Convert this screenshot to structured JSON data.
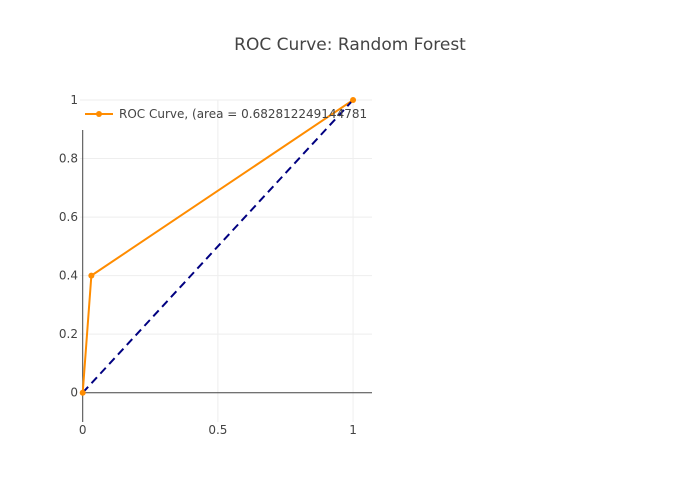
{
  "chart_data": {
    "type": "line",
    "title": "ROC Curve: Random Forest",
    "xlabel": "",
    "ylabel": "",
    "xlim": [
      -0.01,
      1.07
    ],
    "ylim": [
      -0.1,
      1.0
    ],
    "x_ticks": [
      0,
      0.5,
      1
    ],
    "x_tick_labels": [
      "0",
      "0.5",
      "1"
    ],
    "y_ticks": [
      0,
      0.2,
      0.4,
      0.6,
      0.8,
      1
    ],
    "y_tick_labels": [
      "0",
      "0.2",
      "0.4",
      "0.6",
      "0.8",
      "1"
    ],
    "grid": true,
    "legend": {
      "position": "top-left"
    },
    "series": [
      {
        "name": "ROC Curve, (area = 0.682812249144781",
        "color": "#ff8c00",
        "style": "solid",
        "markers": true,
        "x": [
          0,
          0.032,
          1
        ],
        "y": [
          0,
          0.4,
          1
        ]
      },
      {
        "name": "",
        "color": "#000080",
        "style": "dashed",
        "markers": false,
        "x": [
          0,
          1
        ],
        "y": [
          0,
          1
        ]
      }
    ]
  }
}
